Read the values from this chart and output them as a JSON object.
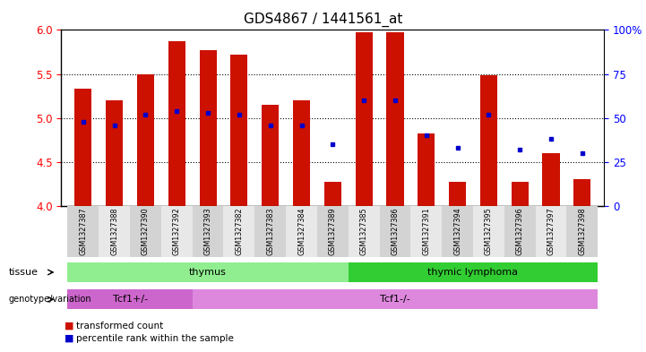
{
  "title": "GDS4867 / 1441561_at",
  "samples": [
    "GSM1327387",
    "GSM1327388",
    "GSM1327390",
    "GSM1327392",
    "GSM1327393",
    "GSM1327382",
    "GSM1327383",
    "GSM1327384",
    "GSM1327389",
    "GSM1327385",
    "GSM1327386",
    "GSM1327391",
    "GSM1327394",
    "GSM1327395",
    "GSM1327396",
    "GSM1327397",
    "GSM1327398"
  ],
  "transformed_counts": [
    5.33,
    5.2,
    5.5,
    5.87,
    5.77,
    5.72,
    5.15,
    5.2,
    4.27,
    5.97,
    5.97,
    4.82,
    4.27,
    5.48,
    4.27,
    4.6,
    4.3
  ],
  "percentile_ranks": [
    48,
    46,
    52,
    54,
    53,
    52,
    46,
    46,
    35,
    60,
    60,
    40,
    33,
    52,
    32,
    38,
    30
  ],
  "ylim_left": [
    4.0,
    6.0
  ],
  "ylim_right": [
    0,
    100
  ],
  "y_ticks_left": [
    4.0,
    4.5,
    5.0,
    5.5,
    6.0
  ],
  "y_ticks_right": [
    0,
    25,
    50,
    75,
    100
  ],
  "bar_color": "#cc1100",
  "dot_color": "#0000cc",
  "baseline": 4.0,
  "tissue_groups": [
    {
      "label": "thymus",
      "start": 0,
      "end": 9,
      "color": "#90ee90"
    },
    {
      "label": "thymic lymphoma",
      "start": 9,
      "end": 17,
      "color": "#32cd32"
    }
  ],
  "genotype_groups": [
    {
      "label": "Tcf1+/-",
      "start": 0,
      "end": 4,
      "color": "#cc66cc"
    },
    {
      "label": "Tcf1-/-",
      "start": 4,
      "end": 17,
      "color": "#dd88dd"
    }
  ],
  "background_color": "#ffffff",
  "title_fontsize": 11
}
